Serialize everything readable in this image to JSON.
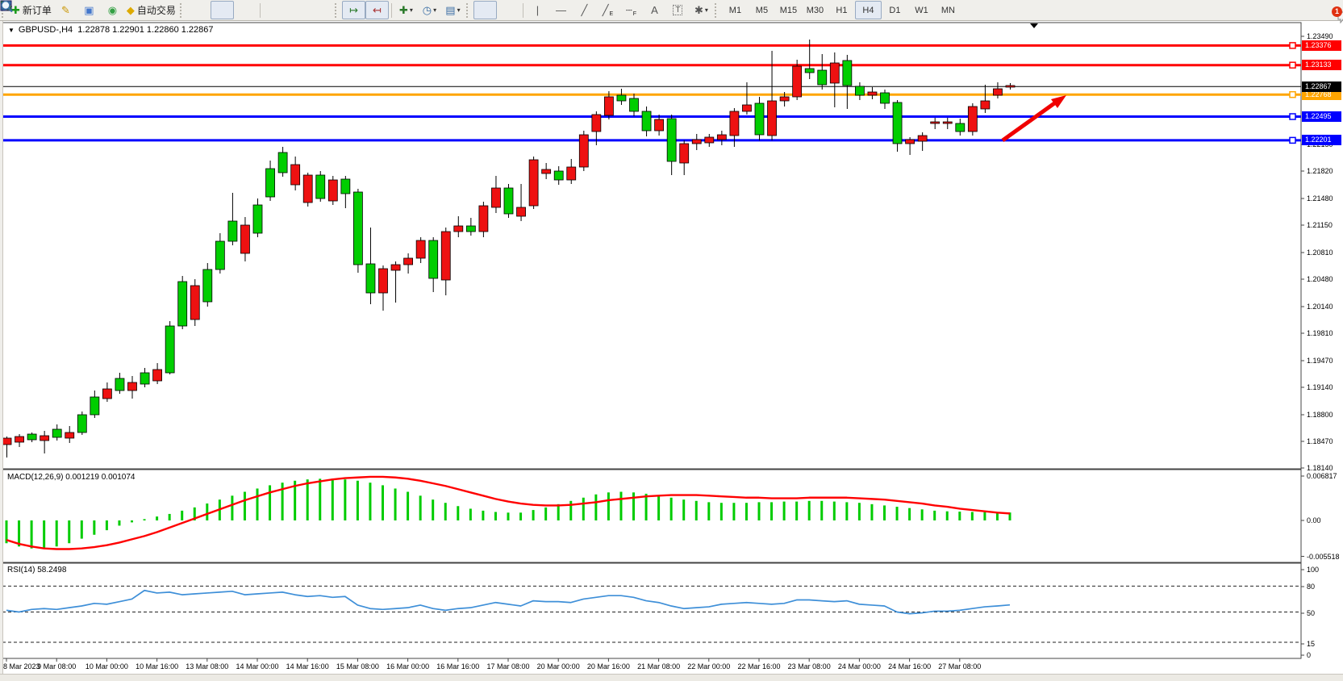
{
  "toolbar": {
    "new_order_label": "新订单",
    "auto_trading_label": "自动交易",
    "timeframes": [
      "M1",
      "M5",
      "M15",
      "M30",
      "H1",
      "H4",
      "D1",
      "W1",
      "MN"
    ],
    "active_timeframe": "H4",
    "notification_count": "1"
  },
  "icons": {
    "new_order": "✚",
    "highlighter": "✎",
    "terminal": "▣",
    "signal": "◉",
    "auto_trading": "◆",
    "tile_windows": "▦",
    "shift_end": "↦",
    "shift_left": "↤",
    "new_chart": "✚",
    "clock": "◷",
    "template": "▤",
    "vertical_line": "|",
    "horizontal_line": "—",
    "trendline": "╱",
    "channel": "╱",
    "channel_suffix": "E",
    "fibonacci": "┄",
    "fibonacci_suffix": "F",
    "text": "A",
    "text_label": "T",
    "arrows": "✱",
    "dropdown": "▾",
    "shift_marker": "▼",
    "title_caret": "▼"
  },
  "chart": {
    "title_symbol_period": "GBPUSD-,H4",
    "title_ohlc": "1.22878 1.22901 1.22860 1.22867",
    "macd_label": "MACD(12,26,9) 0.001219 0.001074",
    "rsi_label": "RSI(14) 58.2498",
    "colors": {
      "bull": "#00ce00",
      "bear": "#ee1111",
      "macd_signal": "#ff0000",
      "macd_hist": "#00cc00",
      "rsi_line": "#3e8fd8",
      "level_red": "#ff0000",
      "level_orange": "#ffa500",
      "level_blue": "#0000ff",
      "current_price": "#000000",
      "arrow": "#f00000"
    }
  },
  "chart_data": {
    "type": "candlestick-with-indicators",
    "symbol": "GBPUSD",
    "period": "H4",
    "price_axis_ticks": [
      "1.23490",
      "1.22150",
      "1.21820",
      "1.21480",
      "1.21150",
      "1.20810",
      "1.20480",
      "1.20140",
      "1.19810",
      "1.19470",
      "1.19140",
      "1.18800",
      "1.18470",
      "1.18140"
    ],
    "price_axis_range": [
      1.1814,
      1.2349
    ],
    "time_axis_labels": [
      "8 Mar 2023",
      "9 Mar 08:00",
      "10 Mar 00:00",
      "10 Mar 16:00",
      "13 Mar 08:00",
      "14 Mar 00:00",
      "14 Mar 16:00",
      "15 Mar 08:00",
      "16 Mar 00:00",
      "16 Mar 16:00",
      "17 Mar 08:00",
      "20 Mar 00:00",
      "20 Mar 16:00",
      "21 Mar 08:00",
      "22 Mar 00:00",
      "22 Mar 16:00",
      "23 Mar 08:00",
      "24 Mar 00:00",
      "24 Mar 16:00",
      "27 Mar 08:00"
    ],
    "horizontal_levels": [
      {
        "price": 1.23376,
        "label": "1.23376",
        "color": "red"
      },
      {
        "price": 1.23133,
        "label": "1.23133",
        "color": "red"
      },
      {
        "price": 1.22768,
        "label": "1.22768",
        "color": "orange"
      },
      {
        "price": 1.22495,
        "label": "1.22495",
        "color": "blue"
      },
      {
        "price": 1.22201,
        "label": "1.22201",
        "color": "blue"
      }
    ],
    "current_price": {
      "price": 1.22867,
      "label": "1.22867"
    },
    "candles_bodyhi_bodylo_high_low_color": [
      [
        1.1851,
        1.1843,
        1.1853,
        1.1827,
        "r"
      ],
      [
        1.1853,
        1.1846,
        1.1856,
        1.184,
        "r"
      ],
      [
        1.1856,
        1.1849,
        1.1858,
        1.1846,
        "g"
      ],
      [
        1.1854,
        1.1848,
        1.186,
        1.1832,
        "r"
      ],
      [
        1.1862,
        1.1852,
        1.1868,
        1.1848,
        "g"
      ],
      [
        1.1858,
        1.1851,
        1.1866,
        1.1845,
        "r"
      ],
      [
        1.188,
        1.1858,
        1.1884,
        1.1855,
        "g"
      ],
      [
        1.1902,
        1.188,
        1.191,
        1.1876,
        "g"
      ],
      [
        1.1912,
        1.19,
        1.192,
        1.1896,
        "r"
      ],
      [
        1.1925,
        1.191,
        1.1932,
        1.1906,
        "g"
      ],
      [
        1.192,
        1.191,
        1.1928,
        1.19,
        "r"
      ],
      [
        1.1932,
        1.1918,
        1.1938,
        1.1914,
        "g"
      ],
      [
        1.1936,
        1.1922,
        1.1944,
        1.1918,
        "r"
      ],
      [
        1.199,
        1.1932,
        1.1996,
        1.193,
        "g"
      ],
      [
        1.2045,
        1.199,
        1.2052,
        1.1986,
        "g"
      ],
      [
        1.204,
        1.1998,
        1.2048,
        1.199,
        "r"
      ],
      [
        1.206,
        1.202,
        1.2068,
        1.2014,
        "g"
      ],
      [
        1.2095,
        1.206,
        1.2105,
        1.2055,
        "g"
      ],
      [
        1.212,
        1.2095,
        1.2155,
        1.209,
        "g"
      ],
      [
        1.2115,
        1.208,
        1.2125,
        1.207,
        "r"
      ],
      [
        1.214,
        1.2105,
        1.2148,
        1.21,
        "g"
      ],
      [
        1.2185,
        1.215,
        1.2195,
        1.2145,
        "g"
      ],
      [
        1.2205,
        1.218,
        1.2212,
        1.2175,
        "g"
      ],
      [
        1.219,
        1.2165,
        1.22,
        1.2158,
        "r"
      ],
      [
        1.2177,
        1.2143,
        1.218,
        1.2138,
        "r"
      ],
      [
        1.2177,
        1.2148,
        1.2182,
        1.2144,
        "g"
      ],
      [
        1.2171,
        1.2145,
        1.2176,
        1.214,
        "r"
      ],
      [
        1.2172,
        1.2154,
        1.2176,
        1.2136,
        "g"
      ],
      [
        1.2156,
        1.2066,
        1.216,
        1.2056,
        "g"
      ],
      [
        1.2067,
        1.2031,
        1.2112,
        1.2017,
        "g"
      ],
      [
        1.2061,
        1.2031,
        1.2065,
        1.2009,
        "r"
      ],
      [
        1.2066,
        1.2059,
        1.207,
        1.2019,
        "r"
      ],
      [
        1.2074,
        1.2066,
        1.208,
        1.2055,
        "r"
      ],
      [
        1.2096,
        1.2074,
        1.21,
        1.2068,
        "r"
      ],
      [
        1.2096,
        1.2049,
        1.21,
        1.2032,
        "g"
      ],
      [
        1.2107,
        1.2047,
        1.2112,
        1.2028,
        "r"
      ],
      [
        1.2114,
        1.2107,
        1.2126,
        1.21,
        "r"
      ],
      [
        1.2114,
        1.2107,
        1.2124,
        1.2102,
        "g"
      ],
      [
        1.2139,
        1.2107,
        1.2144,
        1.21,
        "r"
      ],
      [
        1.2161,
        1.2137,
        1.2176,
        1.213,
        "r"
      ],
      [
        1.2161,
        1.2129,
        1.2166,
        1.2124,
        "g"
      ],
      [
        1.2137,
        1.2126,
        1.2166,
        1.212,
        "r"
      ],
      [
        1.2196,
        1.2139,
        1.22,
        1.2135,
        "r"
      ],
      [
        1.2184,
        1.2179,
        1.2192,
        1.2172,
        "r"
      ],
      [
        1.2182,
        1.2171,
        1.2188,
        1.2165,
        "g"
      ],
      [
        1.2187,
        1.2171,
        1.2197,
        1.2166,
        "r"
      ],
      [
        1.2227,
        1.2187,
        1.2232,
        1.2182,
        "r"
      ],
      [
        1.2252,
        1.2231,
        1.2256,
        1.2214,
        "r"
      ],
      [
        1.2274,
        1.2251,
        1.2281,
        1.2246,
        "r"
      ],
      [
        1.2276,
        1.2269,
        1.2284,
        1.2264,
        "g"
      ],
      [
        1.2272,
        1.2256,
        1.2278,
        1.225,
        "g"
      ],
      [
        1.2256,
        1.2232,
        1.2262,
        1.2225,
        "g"
      ],
      [
        1.2246,
        1.2232,
        1.2252,
        1.2226,
        "r"
      ],
      [
        1.2247,
        1.2194,
        1.2252,
        1.2177,
        "g"
      ],
      [
        1.2216,
        1.2192,
        1.222,
        1.2177,
        "r"
      ],
      [
        1.2221,
        1.2216,
        1.2228,
        1.2208,
        "r"
      ],
      [
        1.2224,
        1.2217,
        1.2228,
        1.2212,
        "r"
      ],
      [
        1.2227,
        1.2221,
        1.2232,
        1.2214,
        "r"
      ],
      [
        1.2256,
        1.2226,
        1.226,
        1.2212,
        "r"
      ],
      [
        1.2264,
        1.2256,
        1.2292,
        1.2252,
        "r"
      ],
      [
        1.2266,
        1.2227,
        1.2274,
        1.222,
        "g"
      ],
      [
        1.2269,
        1.2226,
        1.2331,
        1.222,
        "r"
      ],
      [
        1.2274,
        1.2269,
        1.228,
        1.2262,
        "r"
      ],
      [
        1.2312,
        1.2274,
        1.232,
        1.227,
        "r"
      ],
      [
        1.2309,
        1.2304,
        1.2345,
        1.2296,
        "g"
      ],
      [
        1.2307,
        1.2289,
        1.2327,
        1.2283,
        "g"
      ],
      [
        1.2316,
        1.2291,
        1.2329,
        1.2261,
        "r"
      ],
      [
        1.2319,
        1.2288,
        1.2326,
        1.2259,
        "g"
      ],
      [
        1.2287,
        1.2276,
        1.2292,
        1.227,
        "g"
      ],
      [
        1.228,
        1.2276,
        1.2286,
        1.2271,
        "r"
      ],
      [
        1.2279,
        1.2266,
        1.2283,
        1.2259,
        "g"
      ],
      [
        1.2267,
        1.2216,
        1.227,
        1.2206,
        "g"
      ],
      [
        1.2221,
        1.2216,
        1.2224,
        1.2202,
        "r"
      ],
      [
        1.2226,
        1.2219,
        1.223,
        1.2207,
        "r"
      ],
      [
        1.2243,
        1.2241,
        1.2248,
        1.2234,
        "r"
      ],
      [
        1.2243,
        1.2241,
        1.2248,
        1.2234,
        "r"
      ],
      [
        1.2241,
        1.2231,
        1.2247,
        1.2226,
        "g"
      ],
      [
        1.2262,
        1.2231,
        1.2266,
        1.2226,
        "r"
      ],
      [
        1.2269,
        1.2259,
        1.2289,
        1.2254,
        "r"
      ],
      [
        1.2284,
        1.2276,
        1.2292,
        1.2272,
        "r"
      ],
      [
        1.2288,
        1.2286,
        1.2291,
        1.2283,
        "r"
      ]
    ],
    "macd": {
      "label": "MACD(12,26,9)",
      "main_value": "0.001219",
      "signal_value": "0.001074",
      "axis_ticks": [
        "0.006817",
        "0.00",
        "-0.005518"
      ],
      "axis_values": [
        0.006817,
        0.0,
        -0.005518
      ],
      "hist_x1e4": [
        -35,
        -40,
        -43,
        -43,
        -40,
        -35,
        -28,
        -22,
        -15,
        -8,
        -3,
        2,
        6,
        10,
        15,
        20,
        26,
        32,
        38,
        44,
        49,
        54,
        58,
        61,
        63,
        64,
        64,
        63,
        61,
        58,
        54,
        49,
        44,
        38,
        32,
        27,
        22,
        18,
        15,
        13,
        12,
        12,
        16,
        20,
        25,
        30,
        35,
        40,
        43,
        44,
        43,
        41,
        38,
        35,
        32,
        30,
        28,
        27,
        27,
        27,
        28,
        28,
        29,
        29,
        30,
        30,
        29,
        28,
        27,
        25,
        23,
        21,
        19,
        17,
        15,
        14,
        13.5,
        13,
        12.7,
        12.4,
        12.2
      ],
      "signal_x1e4": [
        -30,
        -36,
        -40,
        -43,
        -44,
        -44,
        -43,
        -41,
        -38,
        -34,
        -29,
        -24,
        -18,
        -11,
        -4,
        3,
        10,
        17,
        24,
        31,
        37,
        43,
        48,
        53,
        57,
        60,
        63,
        65,
        66,
        67,
        67,
        66,
        64,
        61,
        57,
        53,
        48,
        43,
        38,
        33,
        29,
        26,
        24,
        23,
        23,
        24,
        26,
        28,
        31,
        33,
        35,
        37,
        38,
        39,
        39,
        39,
        38,
        37,
        36,
        35,
        35,
        34,
        34,
        34,
        35,
        35,
        35,
        35,
        34,
        33,
        32,
        30,
        28,
        26,
        23,
        21,
        18,
        16,
        14,
        12,
        10.7
      ]
    },
    "rsi": {
      "label": "RSI(14)",
      "value": "58.2498",
      "axis_ticks": [
        "100",
        "80",
        "50",
        "15",
        "0"
      ],
      "level_lines": [
        80,
        50,
        15
      ],
      "series": [
        52,
        50,
        53,
        54,
        53,
        55,
        57,
        60,
        59,
        62,
        65,
        75,
        72,
        73,
        70,
        71,
        72,
        73,
        74,
        70,
        71,
        72,
        73,
        70,
        68,
        69,
        67,
        68,
        58,
        54,
        53,
        54,
        55,
        58,
        54,
        52,
        54,
        55,
        58,
        61,
        59,
        57,
        63,
        62,
        62,
        61,
        65,
        67,
        69,
        69,
        67,
        63,
        61,
        57,
        54,
        55,
        56,
        59,
        60,
        61,
        60,
        59,
        60,
        64,
        64,
        63,
        62,
        63,
        59,
        58,
        57,
        50,
        48,
        49,
        51,
        51,
        52,
        54,
        56,
        57,
        58.25
      ]
    },
    "annotations": [
      {
        "type": "arrow",
        "from_xy": [
          1243,
          174
        ],
        "to_xy": [
          1322,
          118
        ],
        "color": "#f00000"
      },
      {
        "type": "shift-marker",
        "xy": [
          1282,
          29
        ]
      }
    ]
  }
}
